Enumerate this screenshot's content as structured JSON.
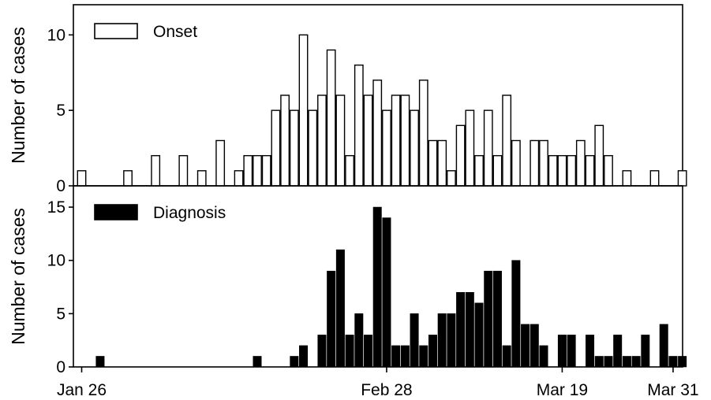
{
  "chart_data": [
    {
      "type": "bar",
      "legend_label": "Onset",
      "legend_position": "top-left",
      "bar_style": "outline",
      "ylabel": "Number of cases",
      "ylim": [
        0,
        12
      ],
      "yticks": [
        0,
        5,
        10
      ],
      "x_start": "Jan 26",
      "x_end": "Mar 31",
      "series": [
        {
          "name": "Onset",
          "day_values": [
            [
              0,
              1
            ],
            [
              5,
              1
            ],
            [
              8,
              2
            ],
            [
              11,
              2
            ],
            [
              13,
              1
            ],
            [
              15,
              3
            ],
            [
              17,
              1
            ],
            [
              18,
              2
            ],
            [
              19,
              2
            ],
            [
              20,
              2
            ],
            [
              21,
              5
            ],
            [
              22,
              6
            ],
            [
              23,
              5
            ],
            [
              24,
              10
            ],
            [
              25,
              5
            ],
            [
              26,
              6
            ],
            [
              27,
              9
            ],
            [
              28,
              6
            ],
            [
              29,
              2
            ],
            [
              30,
              8
            ],
            [
              31,
              6
            ],
            [
              32,
              7
            ],
            [
              33,
              5
            ],
            [
              34,
              6
            ],
            [
              35,
              6
            ],
            [
              36,
              5
            ],
            [
              37,
              7
            ],
            [
              38,
              3
            ],
            [
              39,
              3
            ],
            [
              40,
              1
            ],
            [
              41,
              4
            ],
            [
              42,
              5
            ],
            [
              43,
              2
            ],
            [
              44,
              5
            ],
            [
              45,
              2
            ],
            [
              46,
              6
            ],
            [
              47,
              3
            ],
            [
              49,
              3
            ],
            [
              50,
              3
            ],
            [
              51,
              2
            ],
            [
              52,
              2
            ],
            [
              53,
              2
            ],
            [
              54,
              3
            ],
            [
              55,
              2
            ],
            [
              56,
              4
            ],
            [
              57,
              2
            ],
            [
              59,
              1
            ],
            [
              62,
              1
            ],
            [
              65,
              1
            ]
          ]
        }
      ]
    },
    {
      "type": "bar",
      "legend_label": "Diagnosis",
      "legend_position": "top-left",
      "bar_style": "filled",
      "ylabel": "Number of cases",
      "ylim": [
        0,
        17
      ],
      "yticks": [
        0,
        5,
        10,
        15
      ],
      "x_start": "Jan 26",
      "x_end": "Mar 31",
      "xticks": [
        {
          "day": 0,
          "label": "Jan 26"
        },
        {
          "day": 33,
          "label": "Feb 28"
        },
        {
          "day": 52,
          "label": "Mar 19"
        },
        {
          "day": 64,
          "label": "Mar 31"
        }
      ],
      "series": [
        {
          "name": "Diagnosis",
          "day_values": [
            [
              2,
              1
            ],
            [
              19,
              1
            ],
            [
              23,
              1
            ],
            [
              24,
              2
            ],
            [
              26,
              3
            ],
            [
              27,
              9
            ],
            [
              28,
              11
            ],
            [
              29,
              3
            ],
            [
              30,
              5
            ],
            [
              31,
              3
            ],
            [
              32,
              15
            ],
            [
              33,
              14
            ],
            [
              34,
              2
            ],
            [
              35,
              2
            ],
            [
              36,
              5
            ],
            [
              37,
              2
            ],
            [
              38,
              3
            ],
            [
              39,
              5
            ],
            [
              40,
              5
            ],
            [
              41,
              7
            ],
            [
              42,
              7
            ],
            [
              43,
              6
            ],
            [
              44,
              9
            ],
            [
              45,
              9
            ],
            [
              46,
              2
            ],
            [
              47,
              10
            ],
            [
              48,
              4
            ],
            [
              49,
              4
            ],
            [
              50,
              2
            ],
            [
              52,
              3
            ],
            [
              53,
              3
            ],
            [
              55,
              3
            ],
            [
              56,
              1
            ],
            [
              57,
              1
            ],
            [
              58,
              3
            ],
            [
              59,
              1
            ],
            [
              60,
              1
            ],
            [
              61,
              3
            ],
            [
              63,
              4
            ],
            [
              64,
              1
            ],
            [
              65,
              1
            ]
          ]
        }
      ]
    }
  ]
}
